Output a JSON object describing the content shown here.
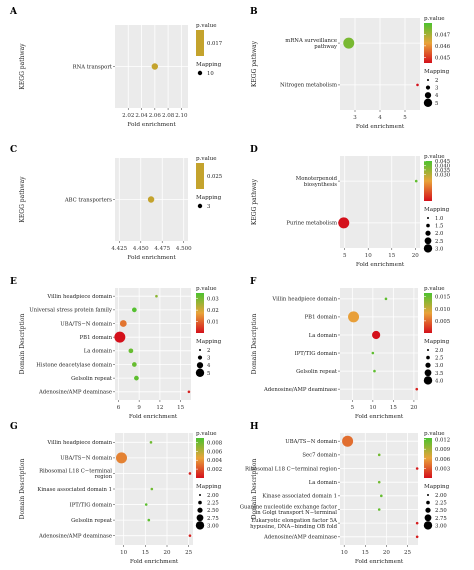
{
  "colors": {
    "panel_bg": "#ebebeb",
    "grid": "#ffffff",
    "grad_high": "#d4101b",
    "grad_mid": "#e9a33a",
    "grad_low": "#4cc22f",
    "single_value_color": "#c4a32d"
  },
  "chart_data": [
    {
      "type": "scatter",
      "panel": "A",
      "xlabel": "Fold enrichment",
      "ylabel": "KEGG pathway",
      "xlim": [
        2.0,
        2.11
      ],
      "x_ticks": [
        2.02,
        2.04,
        2.06,
        2.08,
        2.1
      ],
      "x_tick_labels": [
        "2.02",
        "2.04",
        "2.06",
        "2.08",
        "2.10"
      ],
      "categories": [
        "RNA transport"
      ],
      "points": [
        {
          "category": "RNA transport",
          "x": 2.06,
          "pvalue": 0.017,
          "mapping": 10
        }
      ],
      "colorbar": {
        "title": "p.value",
        "labels": [
          "0.017"
        ],
        "single": true
      },
      "size_legend": {
        "title": "Mapping",
        "labels": [
          "10"
        ]
      }
    },
    {
      "type": "scatter",
      "panel": "B",
      "xlabel": "Fold enrichment",
      "ylabel": "KEGG pathway",
      "xlim": [
        2.4,
        5.6
      ],
      "x_ticks": [
        3,
        4,
        5
      ],
      "x_tick_labels": [
        "3",
        "4",
        "5"
      ],
      "categories": [
        "mRNA surveillance pathway",
        "Nitrogen metabolism"
      ],
      "category_labels": [
        [
          "mRNA surveillance",
          "pathway"
        ],
        [
          "Nitrogen metabolism"
        ]
      ],
      "points": [
        {
          "category": "mRNA surveillance pathway",
          "x": 2.75,
          "pvalue": 0.0475,
          "mapping": 5
        },
        {
          "category": "Nitrogen metabolism",
          "x": 5.5,
          "pvalue": 0.0445,
          "mapping": 1
        }
      ],
      "colorbar": {
        "title": "p.value",
        "range": [
          0.0445,
          0.048
        ],
        "tick_values": [
          0.047,
          0.046,
          0.045
        ],
        "labels": [
          "0.047",
          "0.046",
          "0.045"
        ]
      },
      "size_legend": {
        "title": "Mapping",
        "values": [
          2,
          3,
          4,
          5
        ],
        "labels": [
          "2",
          "3",
          "4",
          "5"
        ]
      }
    },
    {
      "type": "scatter",
      "panel": "C",
      "xlabel": "Fold enrichment",
      "ylabel": "KEGG pathway",
      "xlim": [
        4.42,
        4.505
      ],
      "x_ticks": [
        4.425,
        4.45,
        4.475,
        4.5
      ],
      "x_tick_labels": [
        "4.425",
        "4.450",
        "4.475",
        "4.500"
      ],
      "categories": [
        "ABC transporters"
      ],
      "points": [
        {
          "category": "ABC transporters",
          "x": 4.462,
          "pvalue": 0.025,
          "mapping": 3
        }
      ],
      "colorbar": {
        "title": "p.value",
        "labels": [
          "0.025"
        ],
        "single": true
      },
      "size_legend": {
        "title": "Mapping",
        "labels": [
          "3"
        ]
      }
    },
    {
      "type": "scatter",
      "panel": "D",
      "xlabel": "Fold enrichment",
      "ylabel": "KEGG pathway",
      "xlim": [
        4,
        21
      ],
      "x_ticks": [
        5,
        10,
        15,
        20
      ],
      "x_tick_labels": [
        "5",
        "10",
        "15",
        "20"
      ],
      "categories": [
        "Monoterpenoid biosynthesis",
        "Purine metabolism"
      ],
      "category_labels": [
        [
          "Monoterpenoid",
          "biosynthesis"
        ],
        [
          "Purine metabolism"
        ]
      ],
      "points": [
        {
          "category": "Monoterpenoid biosynthesis",
          "x": 20.2,
          "pvalue": 0.042,
          "mapping": 1
        },
        {
          "category": "Purine metabolism",
          "x": 4.8,
          "pvalue": 0.0,
          "mapping": 3
        }
      ],
      "colorbar": {
        "title": "p.value",
        "range": [
          0.0,
          0.045
        ],
        "tick_values": [
          0.045,
          0.04,
          0.035,
          0.03
        ],
        "labels": [
          "0.045",
          "0.040",
          "0.035",
          "0.030"
        ]
      },
      "size_legend": {
        "title": "Mapping",
        "values": [
          1.0,
          1.5,
          2.0,
          2.5,
          3.0
        ],
        "labels": [
          "1.0",
          "1.5",
          "2.0",
          "2.5",
          "3.0"
        ]
      }
    },
    {
      "type": "scatter",
      "panel": "E",
      "xlabel": "Fold enrichment",
      "ylabel": "Domain Description",
      "xlim": [
        5.5,
        16.5
      ],
      "x_ticks": [
        6,
        9,
        12,
        15
      ],
      "x_tick_labels": [
        "6",
        "9",
        "12",
        "15"
      ],
      "categories": [
        "Villin headpiece domain",
        "Universal stress protein family",
        "UBA/TS-N domain",
        "PB1 domain",
        "La domain",
        "Histone deacetylase domain",
        "Gelsolin repeat",
        "Adenosine/AMP deaminase"
      ],
      "category_labels": [
        [
          "Villin headpiece domain"
        ],
        [
          "Universal stress protein family"
        ],
        [
          "UBA/TS−N domain"
        ],
        [
          "PB1 domain"
        ],
        [
          "La domain"
        ],
        [
          "Histone deacetylase domain"
        ],
        [
          "Gelsolin repeat"
        ],
        [
          "Adenosine/AMP deaminase"
        ]
      ],
      "points": [
        {
          "category": "Villin headpiece domain",
          "x": 11.5,
          "pvalue": 0.028,
          "mapping": 1
        },
        {
          "category": "Universal stress protein family",
          "x": 8.3,
          "pvalue": 0.034,
          "mapping": 2
        },
        {
          "category": "UBA/TS-N domain",
          "x": 6.7,
          "pvalue": 0.012,
          "mapping": 3
        },
        {
          "category": "PB1 domain",
          "x": 6.2,
          "pvalue": 0.0,
          "mapping": 5
        },
        {
          "category": "La domain",
          "x": 7.8,
          "pvalue": 0.032,
          "mapping": 2
        },
        {
          "category": "Histone deacetylase domain",
          "x": 8.3,
          "pvalue": 0.032,
          "mapping": 2
        },
        {
          "category": "Gelsolin repeat",
          "x": 8.6,
          "pvalue": 0.033,
          "mapping": 2
        },
        {
          "category": "Adenosine/AMP deaminase",
          "x": 16.2,
          "pvalue": 0.002,
          "mapping": 1
        }
      ],
      "colorbar": {
        "title": "p.value",
        "range": [
          0.0,
          0.035
        ],
        "tick_values": [
          0.03,
          0.02,
          0.01
        ],
        "labels": [
          "0.03",
          "0.02",
          "0.01"
        ]
      },
      "size_legend": {
        "title": "Mapping",
        "values": [
          2,
          3,
          4,
          5
        ],
        "labels": [
          "2",
          "3",
          "4",
          "5"
        ]
      }
    },
    {
      "type": "scatter",
      "panel": "F",
      "xlabel": "Fold enrichment",
      "ylabel": "Domain Description",
      "xlim": [
        2,
        21
      ],
      "x_ticks": [
        5,
        10,
        15,
        20
      ],
      "x_tick_labels": [
        "5",
        "10",
        "15",
        "20"
      ],
      "categories": [
        "Villin headpiece domain",
        "PB1 domain",
        "La domain",
        "IPT/TIG domain",
        "Gelsolin repeat",
        "Adenosine/AMP deaminase"
      ],
      "category_labels": [
        [
          "Villin headpiece domain"
        ],
        [
          "PB1 domain"
        ],
        [
          "La domain"
        ],
        [
          "IPT/TIG domain"
        ],
        [
          "Gelsolin repeat"
        ],
        [
          "Adenosine/AMP deaminase"
        ]
      ],
      "points": [
        {
          "category": "Villin headpiece domain",
          "x": 13.2,
          "pvalue": 0.0155,
          "mapping": 1
        },
        {
          "category": "PB1 domain",
          "x": 5.3,
          "pvalue": 0.008,
          "mapping": 4
        },
        {
          "category": "La domain",
          "x": 10.8,
          "pvalue": 0.0,
          "mapping": 3
        },
        {
          "category": "IPT/TIG domain",
          "x": 10.0,
          "pvalue": 0.0155,
          "mapping": 1
        },
        {
          "category": "Gelsolin repeat",
          "x": 10.4,
          "pvalue": 0.0155,
          "mapping": 1
        },
        {
          "category": "Adenosine/AMP deaminase",
          "x": 20.7,
          "pvalue": 0.001,
          "mapping": 1
        }
      ],
      "colorbar": {
        "title": "p.value",
        "range": [
          0.0,
          0.0165
        ],
        "tick_values": [
          0.015,
          0.01,
          0.005
        ],
        "labels": [
          "0.015",
          "0.010",
          "0.005"
        ]
      },
      "size_legend": {
        "title": "Mapping",
        "values": [
          2.0,
          2.5,
          3.0,
          3.5,
          4.0
        ],
        "labels": [
          "2.0",
          "2.5",
          "3.0",
          "3.5",
          "4.0"
        ]
      }
    },
    {
      "type": "scatter",
      "panel": "G",
      "xlabel": "Fold enrichment",
      "ylabel": "Domain Description",
      "xlim": [
        8,
        26
      ],
      "x_ticks": [
        10,
        15,
        20,
        25
      ],
      "x_tick_labels": [
        "10",
        "15",
        "20",
        "25"
      ],
      "categories": [
        "Villin headpiece domain",
        "UBA/TS-N domain",
        "Ribosomal L18 C-terminal region",
        "Kinase associated domain 1",
        "IPT/TIG domain",
        "Gelsolin repeat",
        "Adenosine/AMP deaminase"
      ],
      "category_labels": [
        [
          "Villin headpiece domain"
        ],
        [
          "UBA/TS−N domain"
        ],
        [
          "Ribosomal L18 C−terminal",
          "region"
        ],
        [
          "Kinase associated domain 1"
        ],
        [
          "IPT/TIG domain"
        ],
        [
          "Gelsolin repeat"
        ],
        [
          "Adenosine/AMP deaminase"
        ]
      ],
      "points": [
        {
          "category": "Villin headpiece domain",
          "x": 16.3,
          "pvalue": 0.008,
          "mapping": 1
        },
        {
          "category": "UBA/TS-N domain",
          "x": 9.5,
          "pvalue": 0.0035,
          "mapping": 3
        },
        {
          "category": "Ribosomal L18 C-terminal region",
          "x": 25.3,
          "pvalue": 0.0005,
          "mapping": 1
        },
        {
          "category": "Kinase associated domain 1",
          "x": 16.5,
          "pvalue": 0.008,
          "mapping": 1
        },
        {
          "category": "IPT/TIG domain",
          "x": 15.2,
          "pvalue": 0.0085,
          "mapping": 1
        },
        {
          "category": "Gelsolin repeat",
          "x": 15.8,
          "pvalue": 0.0085,
          "mapping": 1
        },
        {
          "category": "Adenosine/AMP deaminase",
          "x": 25.3,
          "pvalue": 0.0005,
          "mapping": 1
        }
      ],
      "colorbar": {
        "title": "p.value",
        "range": [
          0.0,
          0.009
        ],
        "tick_values": [
          0.008,
          0.006,
          0.004,
          0.002
        ],
        "labels": [
          "0.008",
          "0.006",
          "0.004",
          "0.002"
        ]
      },
      "size_legend": {
        "title": "Mapping",
        "values": [
          2.0,
          2.25,
          2.5,
          2.75,
          3.0
        ],
        "labels": [
          "2.00",
          "2.25",
          "2.50",
          "2.75",
          "3.00"
        ]
      }
    },
    {
      "type": "scatter",
      "panel": "H",
      "xlabel": "Fold enrichment",
      "ylabel": "Domain Description",
      "xlim": [
        9,
        27.5
      ],
      "x_ticks": [
        10,
        15,
        20,
        25
      ],
      "x_tick_labels": [
        "10",
        "15",
        "20",
        "25"
      ],
      "categories": [
        "UBA/TS-N domain",
        "Sec7 domain",
        "Ribosomal L18 C-terminal region",
        "La domain",
        "Kinase associated domain 1",
        "Guanine nucleotide exchange factor in Golgi transport N-terminal",
        "Eukaryotic elongation factor 5A hypusine, DNA-binding OB fold",
        "Adenosine/AMP deaminase"
      ],
      "category_labels": [
        [
          "UBA/TS−N domain"
        ],
        [
          "Sec7 domain"
        ],
        [
          "Ribosomal L18 C−terminal region"
        ],
        [
          "La domain"
        ],
        [
          "Kinase associated domain 1"
        ],
        [
          "Guanine nucleotide exchange factor",
          "in Golgi transport N−terminal"
        ],
        [
          "Eukaryotic elongation factor 5A",
          "hypusine, DNA−binding OB fold"
        ],
        [
          "Adenosine/AMP deaminase"
        ]
      ],
      "points": [
        {
          "category": "UBA/TS-N domain",
          "x": 10.8,
          "pvalue": 0.004,
          "mapping": 3
        },
        {
          "category": "Sec7 domain",
          "x": 18.3,
          "pvalue": 0.011,
          "mapping": 1
        },
        {
          "category": "Ribosomal L18 C-terminal region",
          "x": 27.3,
          "pvalue": 0.0005,
          "mapping": 1
        },
        {
          "category": "La domain",
          "x": 18.3,
          "pvalue": 0.011,
          "mapping": 1
        },
        {
          "category": "Kinase associated domain 1",
          "x": 18.8,
          "pvalue": 0.0115,
          "mapping": 1
        },
        {
          "category": "Guanine nucleotide exchange factor in Golgi transport N-terminal",
          "x": 18.3,
          "pvalue": 0.0115,
          "mapping": 1
        },
        {
          "category": "Eukaryotic elongation factor 5A hypusine, DNA-binding OB fold",
          "x": 27.3,
          "pvalue": 0.0005,
          "mapping": 1
        },
        {
          "category": "Adenosine/AMP deaminase",
          "x": 27.3,
          "pvalue": 0.0005,
          "mapping": 1
        }
      ],
      "colorbar": {
        "title": "p.value",
        "range": [
          0.0,
          0.0125
        ],
        "tick_values": [
          0.012,
          0.009,
          0.006,
          0.003
        ],
        "labels": [
          "0.012",
          "0.009",
          "0.006",
          "0.003"
        ]
      },
      "size_legend": {
        "title": "Mapping",
        "values": [
          2.0,
          2.25,
          2.5,
          2.75,
          3.0
        ],
        "labels": [
          "2.00",
          "2.25",
          "2.50",
          "2.75",
          "3.00"
        ]
      }
    }
  ]
}
